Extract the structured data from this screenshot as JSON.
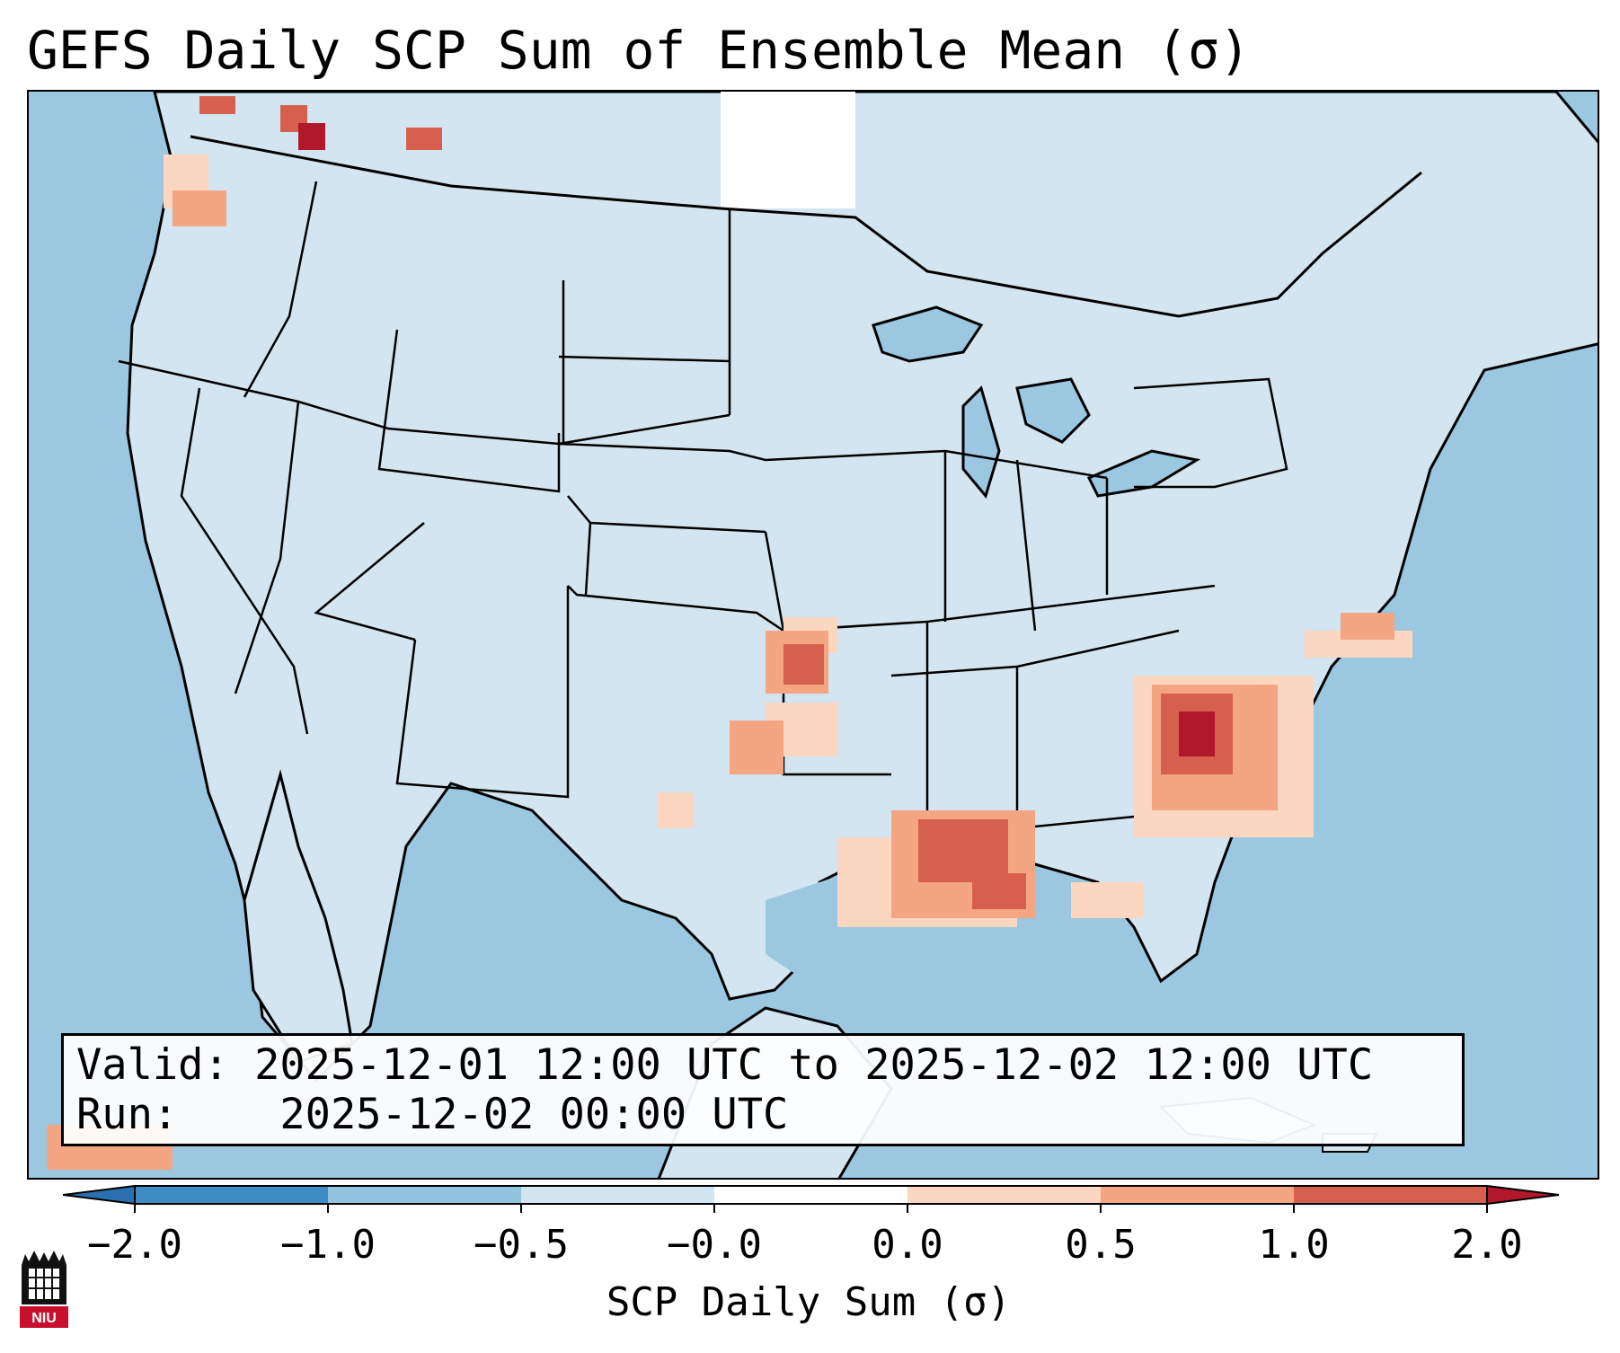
{
  "title": "GEFS Daily SCP Sum of Ensemble Mean (σ)",
  "info": {
    "valid_label": "Valid:",
    "valid_value": "2025-12-01 12:00 UTC to 2025-12-02 12:00 UTC",
    "run_label": "Run:",
    "run_value": "2025-12-02 00:00 UTC"
  },
  "colorbar": {
    "label": "SCP Daily Sum (σ)",
    "ticks": [
      "−2.0",
      "−1.0",
      "−0.5",
      "−0.0",
      "0.0",
      "0.5",
      "1.0",
      "2.0"
    ],
    "bins": [
      {
        "range": "< -2.0",
        "color": "#2b6fae"
      },
      {
        "range": "-2.0 to -1.0",
        "color": "#3f8cc4"
      },
      {
        "range": "-1.0 to -0.5",
        "color": "#92c3df"
      },
      {
        "range": "-0.5 to -0.0",
        "color": "#d2e5f1"
      },
      {
        "range": "-0.0 to 0.0",
        "color": "#ffffff"
      },
      {
        "range": "0.0 to 0.5",
        "color": "#fbd6c1"
      },
      {
        "range": "0.5 to 1.0",
        "color": "#f4a582"
      },
      {
        "range": "1.0 to 2.0",
        "color": "#d6604d"
      },
      {
        "range": "> 2.0",
        "color": "#b2182b"
      }
    ]
  },
  "logo": {
    "text": "NIU"
  },
  "colors": {
    "ocean": "#9bc7e0",
    "land": "#d2e5f1",
    "border": "#000000"
  }
}
